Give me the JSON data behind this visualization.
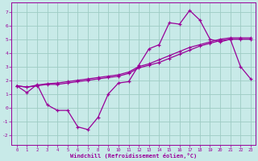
{
  "bg_color": "#c8eae8",
  "grid_color": "#9dccc4",
  "line_color": "#990099",
  "xlabel": "Windchill (Refroidissement éolien,°C)",
  "x_ticks": [
    0,
    1,
    2,
    3,
    4,
    5,
    6,
    7,
    8,
    9,
    10,
    11,
    12,
    13,
    14,
    15,
    16,
    17,
    18,
    19,
    20,
    21,
    22,
    23
  ],
  "y_ticks": [
    -2,
    -1,
    0,
    1,
    2,
    3,
    4,
    5,
    6,
    7
  ],
  "ylim": [
    -2.7,
    7.7
  ],
  "xlim": [
    -0.5,
    23.5
  ],
  "main_x": [
    0,
    1,
    2,
    3,
    4,
    5,
    6,
    7,
    8,
    9,
    10,
    11,
    12,
    13,
    14,
    15,
    16,
    17,
    18,
    19,
    20,
    21,
    22,
    23
  ],
  "main_y": [
    1.6,
    1.1,
    1.7,
    0.2,
    -0.2,
    -0.2,
    -1.4,
    -1.6,
    -0.7,
    1.0,
    1.8,
    1.9,
    3.1,
    4.3,
    4.6,
    6.2,
    6.1,
    7.1,
    6.4,
    5.0,
    4.8,
    5.0,
    3.0,
    2.1
  ],
  "smooth1_x": [
    0,
    1,
    2,
    3,
    4,
    5,
    6,
    7,
    8,
    9,
    10,
    11,
    12,
    13,
    14,
    15,
    16,
    17,
    18,
    19,
    20,
    21,
    22,
    23
  ],
  "smooth1_y": [
    1.6,
    1.5,
    1.6,
    1.7,
    1.7,
    1.8,
    1.9,
    2.0,
    2.1,
    2.2,
    2.3,
    2.5,
    2.9,
    3.1,
    3.3,
    3.6,
    3.9,
    4.2,
    4.5,
    4.7,
    4.9,
    5.0,
    5.0,
    5.0
  ],
  "smooth2_x": [
    0,
    1,
    2,
    3,
    4,
    5,
    6,
    7,
    8,
    9,
    10,
    11,
    12,
    13,
    14,
    15,
    16,
    17,
    18,
    19,
    20,
    21,
    22,
    23
  ],
  "smooth2_y": [
    1.6,
    1.5,
    1.65,
    1.75,
    1.8,
    1.9,
    2.0,
    2.1,
    2.2,
    2.3,
    2.4,
    2.6,
    3.0,
    3.2,
    3.5,
    3.8,
    4.1,
    4.4,
    4.6,
    4.8,
    5.0,
    5.1,
    5.1,
    5.1
  ]
}
